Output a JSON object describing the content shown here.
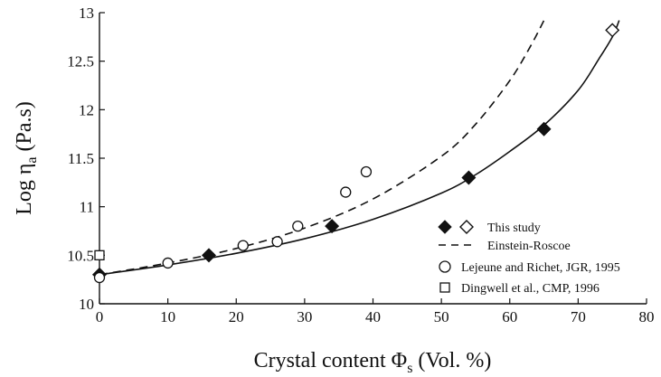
{
  "chart_data": {
    "type": "scatter",
    "xlabel_main": "Crystal content ",
    "xlabel_symbol": "Φ",
    "xlabel_sub": "s",
    "xlabel_tail": " (Vol. %)",
    "ylabel_main": "Log ",
    "ylabel_symbol": "η",
    "ylabel_sub": "a",
    "ylabel_tail": " (Pa.s)",
    "xlim": [
      0,
      80
    ],
    "ylim": [
      10,
      13
    ],
    "xticks": [
      0,
      10,
      20,
      30,
      40,
      50,
      60,
      70,
      80
    ],
    "yticks": [
      10,
      10.5,
      11,
      11.5,
      12,
      12.5,
      13
    ],
    "ytick_labels": [
      "10",
      "10.5",
      "11",
      "11.5",
      "12",
      "12.5",
      "13"
    ],
    "grid": false,
    "legend_position": "lower-right",
    "series": [
      {
        "name": "This study",
        "marker": "filled-diamond",
        "points": [
          [
            0,
            10.3
          ],
          [
            16,
            10.5
          ],
          [
            34,
            10.8
          ],
          [
            54,
            11.3
          ],
          [
            65,
            11.8
          ]
        ]
      },
      {
        "name": "This study",
        "marker": "open-diamond",
        "points": [
          [
            75,
            12.82
          ]
        ]
      },
      {
        "name": "Lejeune and Richet, JGR, 1995",
        "marker": "open-circle",
        "points": [
          [
            0,
            10.27
          ],
          [
            10,
            10.42
          ],
          [
            21,
            10.6
          ],
          [
            26,
            10.64
          ],
          [
            29,
            10.8
          ],
          [
            36,
            11.15
          ],
          [
            39,
            11.36
          ]
        ]
      },
      {
        "name": "Dingwell et al., CMP, 1996",
        "marker": "open-square",
        "points": [
          [
            0,
            10.5
          ]
        ]
      }
    ],
    "fit_curves": [
      {
        "name": "Einstein-Roscoe",
        "style": "dashed",
        "points": [
          [
            0,
            10.3
          ],
          [
            10,
            10.42
          ],
          [
            20,
            10.57
          ],
          [
            30,
            10.78
          ],
          [
            40,
            11.08
          ],
          [
            50,
            11.52
          ],
          [
            55,
            11.85
          ],
          [
            60,
            12.3
          ],
          [
            63,
            12.65
          ],
          [
            65,
            12.92
          ]
        ]
      },
      {
        "name": "",
        "style": "solid",
        "points": [
          [
            0,
            10.3
          ],
          [
            10,
            10.4
          ],
          [
            20,
            10.52
          ],
          [
            30,
            10.67
          ],
          [
            40,
            10.87
          ],
          [
            50,
            11.14
          ],
          [
            55,
            11.33
          ],
          [
            60,
            11.57
          ],
          [
            65,
            11.84
          ],
          [
            70,
            12.2
          ],
          [
            73,
            12.52
          ],
          [
            75,
            12.75
          ],
          [
            76,
            12.92
          ]
        ]
      }
    ],
    "legend": [
      {
        "label": "This study",
        "marker": "diamonds"
      },
      {
        "label": "Einstein-Roscoe",
        "marker": "dashed-line"
      },
      {
        "label": "Lejeune and Richet, JGR, 1995",
        "marker": "open-circle"
      },
      {
        "label": "Dingwell et al., CMP, 1996",
        "marker": "open-square"
      }
    ]
  }
}
